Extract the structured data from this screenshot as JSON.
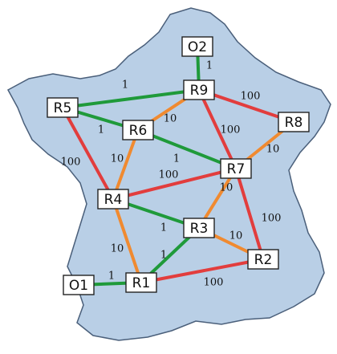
{
  "colors": {
    "map_fill": "#b9cfe6",
    "map_stroke": "#4a5f7a",
    "weight_1": "#1f9a3a",
    "weight_10": "#f08a30",
    "weight_100": "#e23d3d"
  },
  "nodes": [
    {
      "id": "O2",
      "label": "O2"
    },
    {
      "id": "R9",
      "label": "R9"
    },
    {
      "id": "R5",
      "label": "R5"
    },
    {
      "id": "R6",
      "label": "R6"
    },
    {
      "id": "R8",
      "label": "R8"
    },
    {
      "id": "R7",
      "label": "R7"
    },
    {
      "id": "R4",
      "label": "R4"
    },
    {
      "id": "R3",
      "label": "R3"
    },
    {
      "id": "R2",
      "label": "R2"
    },
    {
      "id": "R1",
      "label": "R1"
    },
    {
      "id": "O1",
      "label": "O1"
    }
  ],
  "edges": [
    {
      "from": "O2",
      "to": "R9",
      "weight": "1"
    },
    {
      "from": "R5",
      "to": "R9",
      "weight": "1"
    },
    {
      "from": "R5",
      "to": "R6",
      "weight": "1"
    },
    {
      "from": "R5",
      "to": "R4",
      "weight": "100"
    },
    {
      "from": "R9",
      "to": "R6",
      "weight": "10"
    },
    {
      "from": "R9",
      "to": "R8",
      "weight": "100"
    },
    {
      "from": "R9",
      "to": "R7",
      "weight": "100"
    },
    {
      "from": "R6",
      "to": "R7",
      "weight": "1"
    },
    {
      "from": "R6",
      "to": "R4",
      "weight": "10"
    },
    {
      "from": "R8",
      "to": "R7",
      "weight": "10"
    },
    {
      "from": "R7",
      "to": "R4",
      "weight": "100"
    },
    {
      "from": "R7",
      "to": "R3",
      "weight": "10"
    },
    {
      "from": "R7",
      "to": "R2",
      "weight": "100"
    },
    {
      "from": "R4",
      "to": "R3",
      "weight": "1"
    },
    {
      "from": "R4",
      "to": "R1",
      "weight": "10"
    },
    {
      "from": "R3",
      "to": "R2",
      "weight": "10"
    },
    {
      "from": "R3",
      "to": "R1",
      "weight": "1"
    },
    {
      "from": "R1",
      "to": "R2",
      "weight": "100"
    },
    {
      "from": "O1",
      "to": "R1",
      "weight": "1"
    }
  ]
}
